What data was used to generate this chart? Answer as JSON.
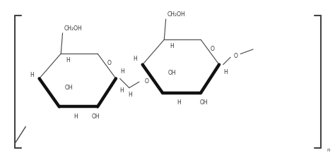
{
  "bg_color": "#ffffff",
  "line_color": "#444444",
  "bold_color": "#111111",
  "text_color": "#333333",
  "figsize": [
    4.74,
    2.37
  ],
  "dpi": 100,
  "lw_thin": 0.8,
  "lw_bold": 3.2,
  "fs": 5.5,
  "xlim": [
    0,
    10
  ],
  "ylim": [
    0,
    5
  ]
}
